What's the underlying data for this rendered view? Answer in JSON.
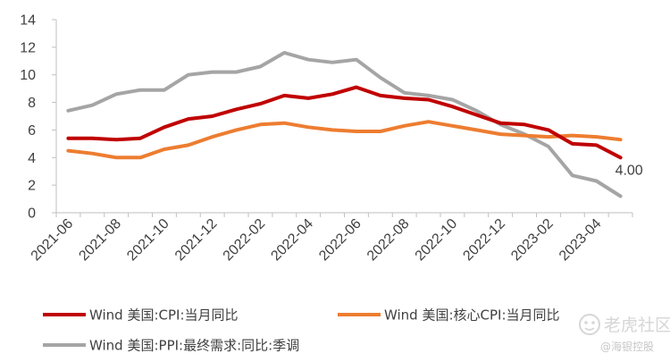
{
  "chart_data": {
    "type": "line",
    "title": "",
    "xlabel": "",
    "ylabel": "",
    "ylim": [
      0,
      14
    ],
    "yticks": [
      "0",
      "2",
      "4",
      "6",
      "8",
      "10",
      "12",
      "14"
    ],
    "x": [
      "2021-06",
      "2021-07",
      "2021-08",
      "2021-09",
      "2021-10",
      "2021-11",
      "2021-12",
      "2022-01",
      "2022-02",
      "2022-03",
      "2022-04",
      "2022-05",
      "2022-06",
      "2022-07",
      "2022-08",
      "2022-09",
      "2022-10",
      "2022-11",
      "2022-12",
      "2023-01",
      "2023-02",
      "2023-03",
      "2023-04",
      "2023-05"
    ],
    "xtick_labels": [
      "2021-06",
      "2021-08",
      "2021-10",
      "2021-12",
      "2022-02",
      "2022-04",
      "2022-06",
      "2022-08",
      "2022-10",
      "2022-12",
      "2023-02",
      "2023-04"
    ],
    "grid": false,
    "legend_position": "bottom",
    "series": [
      {
        "name": "Wind 美国:CPI:当月同比",
        "color": "#c00000",
        "values": [
          5.4,
          5.4,
          5.3,
          5.4,
          6.2,
          6.8,
          7.0,
          7.5,
          7.9,
          8.5,
          8.3,
          8.6,
          9.1,
          8.5,
          8.3,
          8.2,
          7.7,
          7.1,
          6.5,
          6.4,
          6.0,
          5.0,
          4.9,
          4.0
        ]
      },
      {
        "name": "Wind 美国:核心CPI:当月同比",
        "color": "#ed7d31",
        "values": [
          4.5,
          4.3,
          4.0,
          4.0,
          4.6,
          4.9,
          5.5,
          6.0,
          6.4,
          6.5,
          6.2,
          6.0,
          5.9,
          5.9,
          6.3,
          6.6,
          6.3,
          6.0,
          5.7,
          5.6,
          5.5,
          5.6,
          5.5,
          5.3
        ]
      },
      {
        "name": "Wind 美国:PPI:最终需求:同比:季调",
        "color": "#a5a5a5",
        "values": [
          7.4,
          7.8,
          8.6,
          8.9,
          8.9,
          10.0,
          10.2,
          10.2,
          10.6,
          11.6,
          11.1,
          10.9,
          11.1,
          9.8,
          8.7,
          8.5,
          8.2,
          7.4,
          6.4,
          5.7,
          4.8,
          2.7,
          2.3,
          1.2
        ]
      }
    ],
    "annotations": [
      {
        "text": "4.00",
        "series": 0,
        "point_index": 23
      }
    ]
  },
  "watermark": {
    "brand": "老虎社区",
    "source": "@海银控股"
  }
}
